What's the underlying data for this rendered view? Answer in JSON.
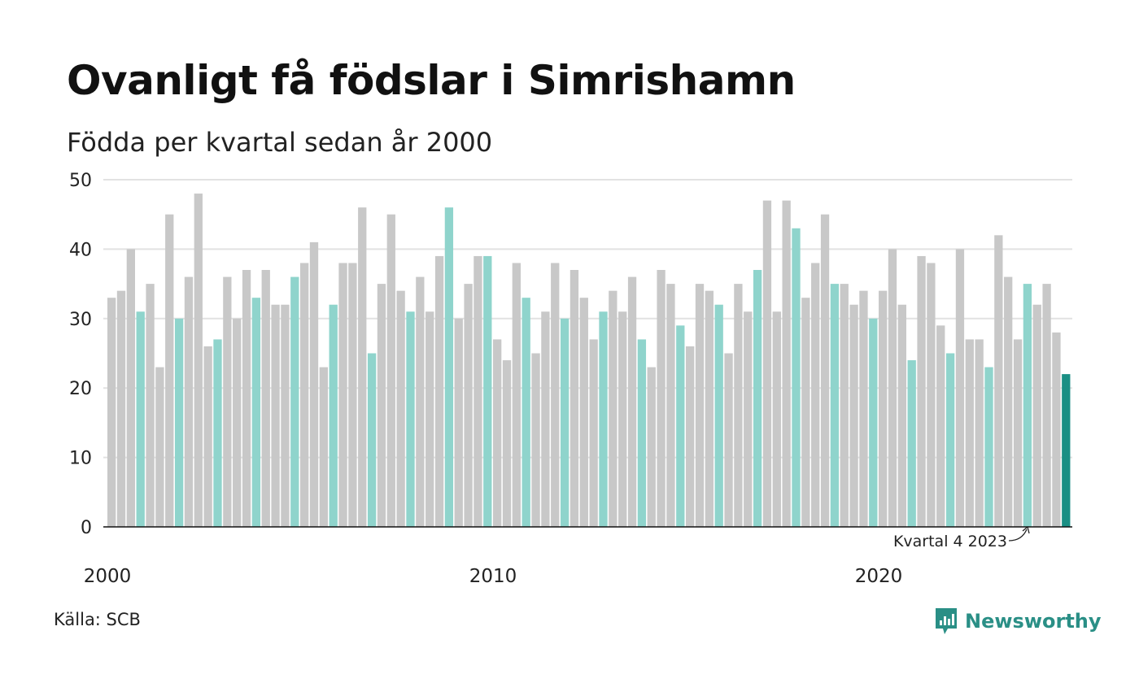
{
  "title": "Ovanligt få födslar i Simrishamn",
  "subtitle": "Födda per kvartal sedan år 2000",
  "source": "Källa: SCB",
  "brand": "Newsworthy",
  "colors": {
    "gray": "#c8c8c8",
    "q4": "#8fd4cc",
    "highlight": "#1a8f84",
    "brand": "#2a8f86"
  },
  "chart_data": {
    "type": "bar",
    "ylim": [
      0,
      50
    ],
    "yticks": [
      0,
      10,
      20,
      30,
      40,
      50
    ],
    "xtick_labels": [
      "2000",
      "2010",
      "2020"
    ],
    "start_year": 2000,
    "annotation": "Kvartal 4 2023",
    "highlight_quarter": "Kvartal 4 2023",
    "grid": true,
    "values": [
      33,
      34,
      40,
      31,
      35,
      23,
      45,
      30,
      36,
      48,
      26,
      27,
      36,
      30,
      37,
      33,
      37,
      32,
      32,
      36,
      38,
      41,
      23,
      32,
      38,
      38,
      46,
      25,
      35,
      45,
      34,
      31,
      36,
      31,
      39,
      46,
      30,
      35,
      39,
      39,
      27,
      24,
      38,
      33,
      25,
      31,
      38,
      30,
      37,
      33,
      27,
      31,
      34,
      31,
      36,
      27,
      23,
      37,
      35,
      29,
      26,
      35,
      34,
      32,
      25,
      35,
      31,
      37,
      47,
      31,
      47,
      43,
      33,
      38,
      45,
      35,
      35,
      32,
      34,
      30,
      34,
      40,
      32,
      24,
      39,
      38,
      29,
      25,
      40,
      27,
      27,
      23,
      42,
      36,
      27,
      35,
      32,
      35,
      28,
      22
    ]
  }
}
